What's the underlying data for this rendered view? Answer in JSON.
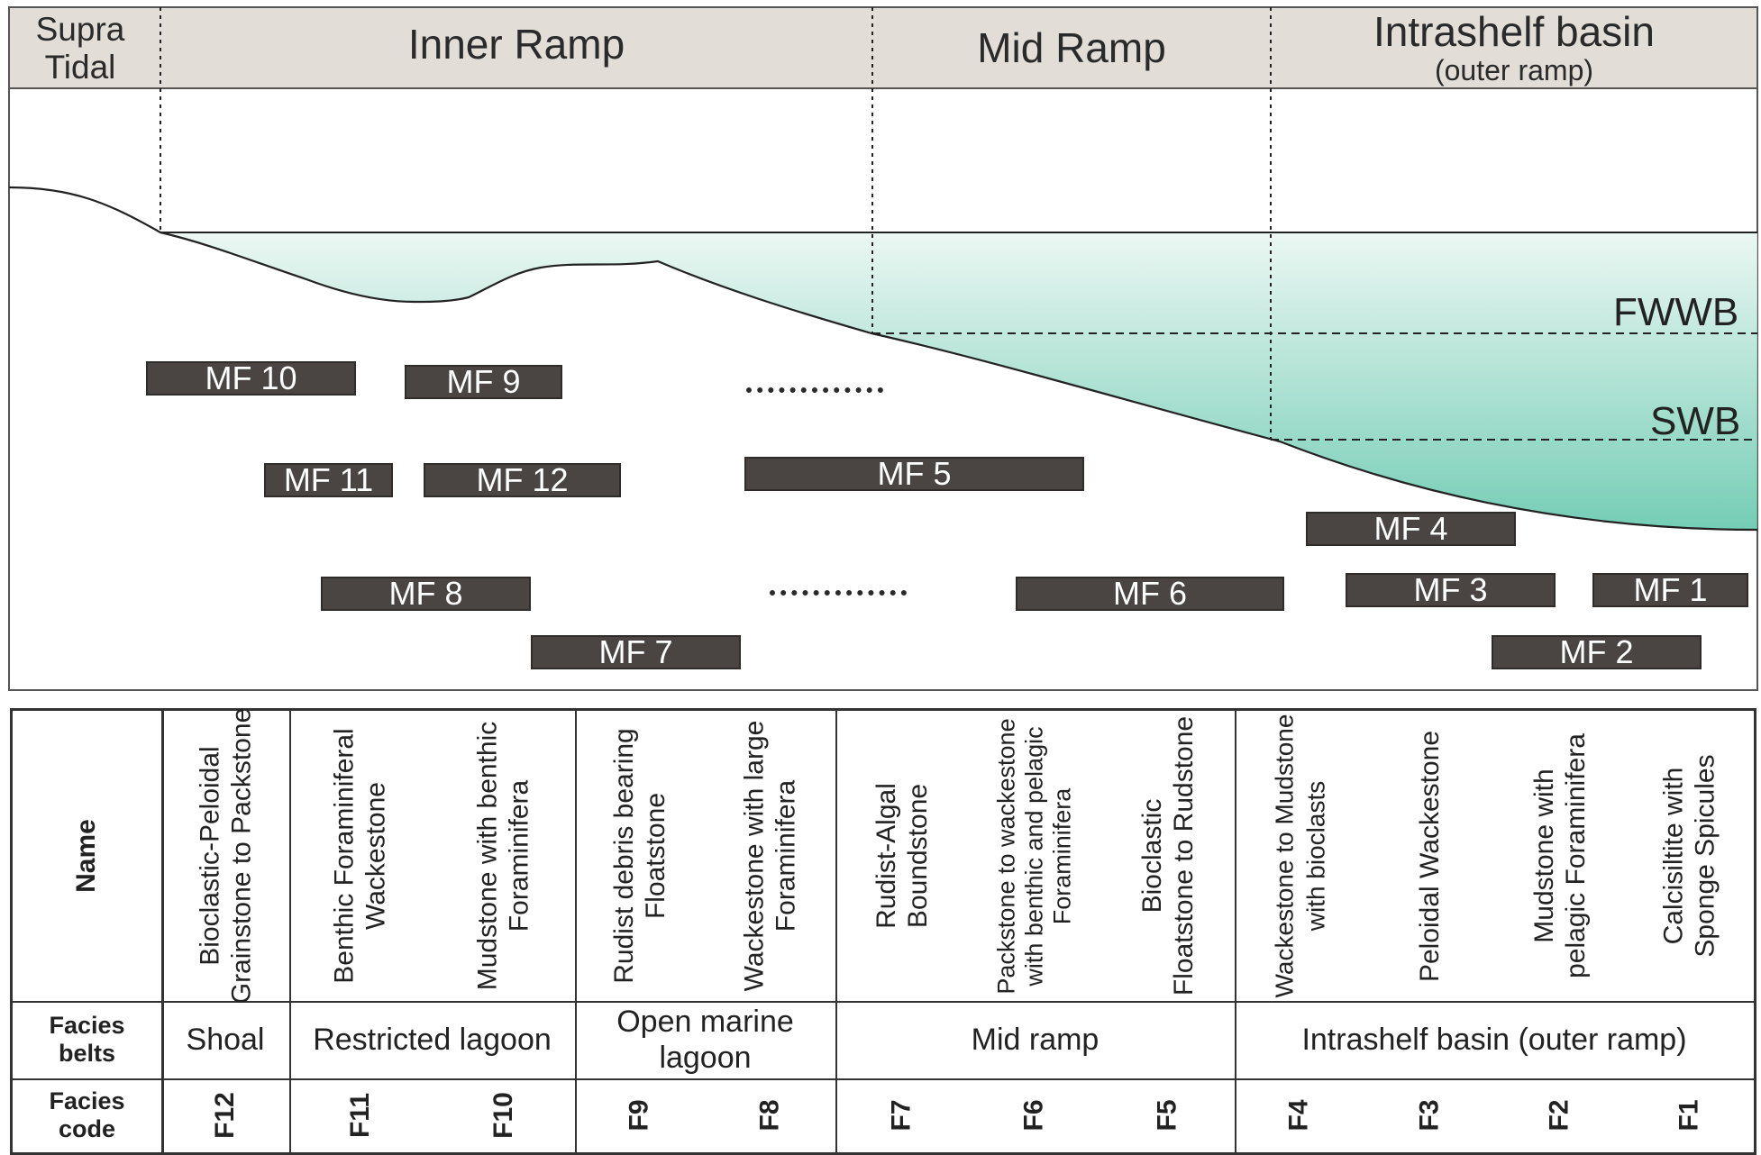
{
  "zones": {
    "supra": [
      "Supra",
      "Tidal"
    ],
    "inner": "Inner Ramp",
    "mid": "Mid Ramp",
    "basin": "Intrashelf basin",
    "basin_sub": "(outer ramp)"
  },
  "wave_bases": {
    "fwwb": "FWWB",
    "swb": "SWB"
  },
  "colors": {
    "water_top": "#e8f6f1",
    "water_bottom": "#5cc4a8",
    "box_fill": "#4a4542",
    "header_fill": "#e2ddd6"
  },
  "microfacies": [
    "MF 10",
    "MF 9",
    "MF 11",
    "MF 12",
    "MF 5",
    "MF 4",
    "MF 8",
    "MF 6",
    "MF 3",
    "MF 1",
    "MF 7",
    "MF 2"
  ],
  "table": {
    "row_labels": {
      "name": "Name",
      "belts": [
        "Facies",
        "belts"
      ],
      "code": [
        "Facies",
        "code"
      ]
    },
    "names": [
      [
        "Bioclastic-Peloidal",
        "Grainstone to Packstone"
      ],
      [
        "Benthic Foraminiferal",
        "Wackestone"
      ],
      [
        "Mudstone with benthic",
        "Foraminifera"
      ],
      [
        "Rudist debris bearing",
        "Floatstone"
      ],
      [
        "Wackestone with large",
        "Foraminifera"
      ],
      [
        "Rudist-Algal",
        "Boundstone"
      ],
      [
        "Packstone to wackestone",
        "with benthic and pelagic",
        "Foraminifera"
      ],
      [
        "Bioclastic",
        "Floatstone to Rudstone"
      ],
      [
        "Wackestone to Mudstone",
        "with bioclasts"
      ],
      [
        "Peloidal Wackestone"
      ],
      [
        "Mudstone with",
        "pelagic Foraminifera"
      ],
      [
        "Calcisiltite with",
        "Sponge Spicules"
      ]
    ],
    "belts": [
      [
        "Shoal"
      ],
      [
        "Restricted lagoon"
      ],
      [
        "Open marine",
        "lagoon"
      ],
      [
        "Mid ramp"
      ],
      [
        "Intrashelf basin (outer ramp)"
      ]
    ],
    "codes": [
      "F12",
      "F11",
      "F10",
      "F9",
      "F8",
      "F7",
      "F6",
      "F5",
      "F4",
      "F3",
      "F2",
      "F1"
    ]
  }
}
